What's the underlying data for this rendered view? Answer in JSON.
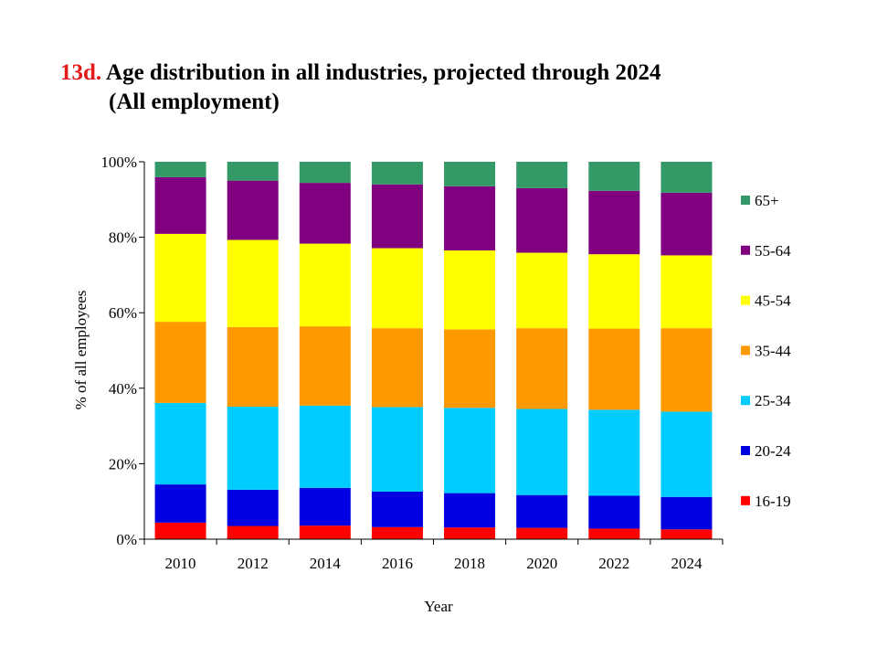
{
  "title": {
    "code": "13d.",
    "line1": "Age distribution in all industries, projected through 2024",
    "line2": "(All employment)"
  },
  "chart_data": {
    "type": "bar",
    "stacked": true,
    "xlabel": "Year",
    "ylabel": "% of all employees",
    "ylim": [
      0,
      100
    ],
    "yticks": [
      "0%",
      "20%",
      "40%",
      "60%",
      "80%",
      "100%"
    ],
    "categories": [
      "2010",
      "2012",
      "2014",
      "2016",
      "2018",
      "2020",
      "2022",
      "2024"
    ],
    "legend_position": "right",
    "grid": false,
    "series": [
      {
        "name": "16-19",
        "color": "#ff0000",
        "values": [
          4.4,
          3.5,
          3.6,
          3.2,
          3.1,
          3.0,
          2.8,
          2.6
        ]
      },
      {
        "name": "20-24",
        "color": "#0000e0",
        "values": [
          10.1,
          9.6,
          10.0,
          9.4,
          9.1,
          8.7,
          8.7,
          8.6
        ]
      },
      {
        "name": "25-34",
        "color": "#00ccff",
        "values": [
          21.6,
          22.0,
          21.8,
          22.4,
          22.6,
          22.8,
          22.8,
          22.6
        ]
      },
      {
        "name": "35-44",
        "color": "#ff9900",
        "values": [
          21.5,
          21.1,
          21.0,
          20.9,
          20.8,
          21.4,
          21.5,
          22.1
        ]
      },
      {
        "name": "45-54",
        "color": "#ffff00",
        "values": [
          23.3,
          23.1,
          21.9,
          21.2,
          20.9,
          20.0,
          19.7,
          19.3
        ]
      },
      {
        "name": "55-64",
        "color": "#800080",
        "values": [
          15.0,
          15.7,
          16.1,
          16.9,
          17.0,
          17.1,
          16.8,
          16.6
        ]
      },
      {
        "name": "65+",
        "color": "#339966",
        "values": [
          4.1,
          5.0,
          5.6,
          6.0,
          6.5,
          7.0,
          7.7,
          8.2
        ]
      }
    ]
  }
}
